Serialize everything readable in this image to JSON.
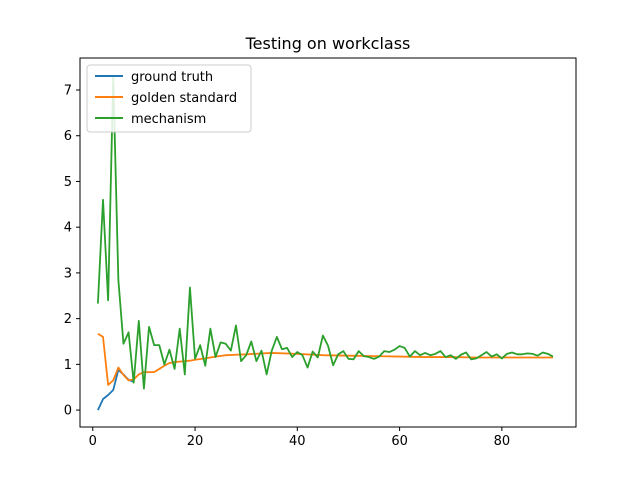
{
  "chart_data": {
    "type": "line",
    "title": "Testing on workclass",
    "xlabel": "",
    "ylabel": "",
    "xlim": [
      -2.5,
      94.5
    ],
    "ylim": [
      -0.37,
      7.7
    ],
    "x_ticks": [
      0,
      20,
      40,
      60,
      80
    ],
    "y_ticks": [
      0,
      1,
      2,
      3,
      4,
      5,
      6,
      7
    ],
    "grid": false,
    "legend_position": "top-left",
    "series": [
      {
        "name": "ground truth",
        "color": "#1f77b4",
        "x": [
          1,
          2,
          3,
          4,
          5,
          6,
          7,
          8
        ],
        "y": [
          0.0,
          0.24,
          0.33,
          0.44,
          0.88,
          0.78,
          0.66,
          0.62
        ]
      },
      {
        "name": "golden standard",
        "color": "#ff7f0e",
        "x": [
          1,
          2,
          3,
          4,
          5,
          6,
          7,
          8,
          9,
          10,
          11,
          12,
          13,
          14,
          15,
          16,
          17,
          18,
          19,
          20,
          22,
          24,
          26,
          28,
          30,
          35,
          40,
          45,
          50,
          55,
          60,
          65,
          70,
          75,
          80,
          85,
          90
        ],
        "y": [
          1.67,
          1.6,
          0.55,
          0.65,
          0.93,
          0.77,
          0.65,
          0.67,
          0.78,
          0.83,
          0.83,
          0.83,
          0.9,
          0.97,
          1.03,
          1.05,
          1.06,
          1.07,
          1.08,
          1.1,
          1.13,
          1.17,
          1.2,
          1.21,
          1.22,
          1.25,
          1.23,
          1.2,
          1.19,
          1.18,
          1.17,
          1.16,
          1.16,
          1.15,
          1.15,
          1.15,
          1.15
        ]
      },
      {
        "name": "mechanism",
        "color": "#2ca02c",
        "x": [
          1,
          2,
          3,
          4,
          5,
          6,
          7,
          8,
          9,
          10,
          11,
          12,
          13,
          14,
          15,
          16,
          17,
          18,
          19,
          20,
          21,
          22,
          23,
          24,
          25,
          26,
          27,
          28,
          29,
          30,
          31,
          32,
          33,
          34,
          35,
          36,
          37,
          38,
          39,
          40,
          41,
          42,
          43,
          44,
          45,
          46,
          47,
          48,
          49,
          50,
          51,
          52,
          53,
          54,
          55,
          56,
          57,
          58,
          59,
          60,
          61,
          62,
          63,
          64,
          65,
          66,
          67,
          68,
          69,
          70,
          71,
          72,
          73,
          74,
          75,
          76,
          77,
          78,
          79,
          80,
          81,
          82,
          83,
          84,
          85,
          86,
          87,
          88,
          89,
          90
        ],
        "y": [
          2.33,
          4.6,
          2.4,
          7.3,
          2.85,
          1.45,
          1.7,
          0.6,
          1.95,
          0.47,
          1.82,
          1.42,
          1.42,
          1.0,
          1.32,
          0.9,
          1.78,
          0.78,
          2.68,
          1.12,
          1.42,
          0.97,
          1.78,
          1.16,
          1.48,
          1.45,
          1.3,
          1.85,
          1.07,
          1.2,
          1.5,
          1.07,
          1.3,
          0.78,
          1.3,
          1.6,
          1.33,
          1.36,
          1.16,
          1.27,
          1.2,
          0.93,
          1.28,
          1.15,
          1.63,
          1.41,
          0.98,
          1.22,
          1.29,
          1.12,
          1.11,
          1.29,
          1.18,
          1.16,
          1.12,
          1.17,
          1.29,
          1.27,
          1.32,
          1.4,
          1.36,
          1.17,
          1.29,
          1.2,
          1.25,
          1.2,
          1.23,
          1.29,
          1.16,
          1.2,
          1.12,
          1.21,
          1.26,
          1.11,
          1.13,
          1.2,
          1.27,
          1.17,
          1.22,
          1.13,
          1.23,
          1.26,
          1.22,
          1.22,
          1.24,
          1.23,
          1.19,
          1.26,
          1.23,
          1.17
        ]
      }
    ]
  }
}
